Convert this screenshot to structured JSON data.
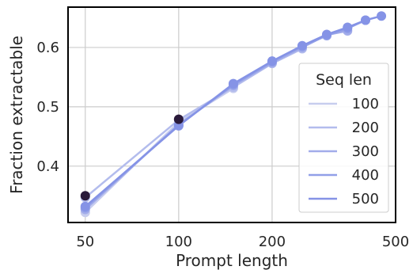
{
  "chart_data": {
    "type": "line",
    "xscale": "log",
    "xlabel": "Prompt length",
    "ylabel": "Fraction extractable",
    "xlim": [
      44,
      500
    ],
    "ylim": [
      0.305,
      0.668
    ],
    "xticks": [
      50,
      100,
      200,
      500
    ],
    "yticks": [
      0.4,
      0.5,
      0.6
    ],
    "ytick_labels": [
      "0.4",
      "0.5",
      "0.6"
    ],
    "grid": true,
    "legend": {
      "title": "Seq len",
      "position": "lower-right"
    },
    "colors": {
      "grid": "#cccccc",
      "frame": "#000000",
      "dark_point": "#2a1a3a"
    },
    "series": [
      {
        "name": "100",
        "color": "#c7cdee",
        "x": [
          50,
          100,
          150
        ],
        "y": [
          0.322,
          0.474,
          0.531
        ]
      },
      {
        "name": "200",
        "color": "#b3bced",
        "x": [
          50,
          100,
          150,
          200,
          250
        ],
        "y": [
          0.347,
          0.478,
          0.533,
          0.573,
          0.598
        ]
      },
      {
        "name": "300",
        "color": "#a2acea",
        "x": [
          50,
          100,
          150,
          200,
          250,
          300,
          350
        ],
        "y": [
          0.327,
          0.47,
          0.536,
          0.574,
          0.6,
          0.621,
          0.628
        ]
      },
      {
        "name": "400",
        "color": "#919fe8",
        "x": [
          50,
          100,
          150,
          200,
          250,
          300,
          350,
          400
        ],
        "y": [
          0.33,
          0.469,
          0.537,
          0.576,
          0.602,
          0.62,
          0.632,
          0.646
        ]
      },
      {
        "name": "500",
        "color": "#8593e6",
        "x": [
          50,
          100,
          150,
          200,
          250,
          300,
          350,
          400,
          450
        ],
        "y": [
          0.332,
          0.468,
          0.539,
          0.577,
          0.603,
          0.622,
          0.634,
          0.646,
          0.653
        ]
      }
    ],
    "dark_points": [
      {
        "x": 50,
        "y": 0.35
      },
      {
        "x": 100,
        "y": 0.479
      }
    ]
  }
}
